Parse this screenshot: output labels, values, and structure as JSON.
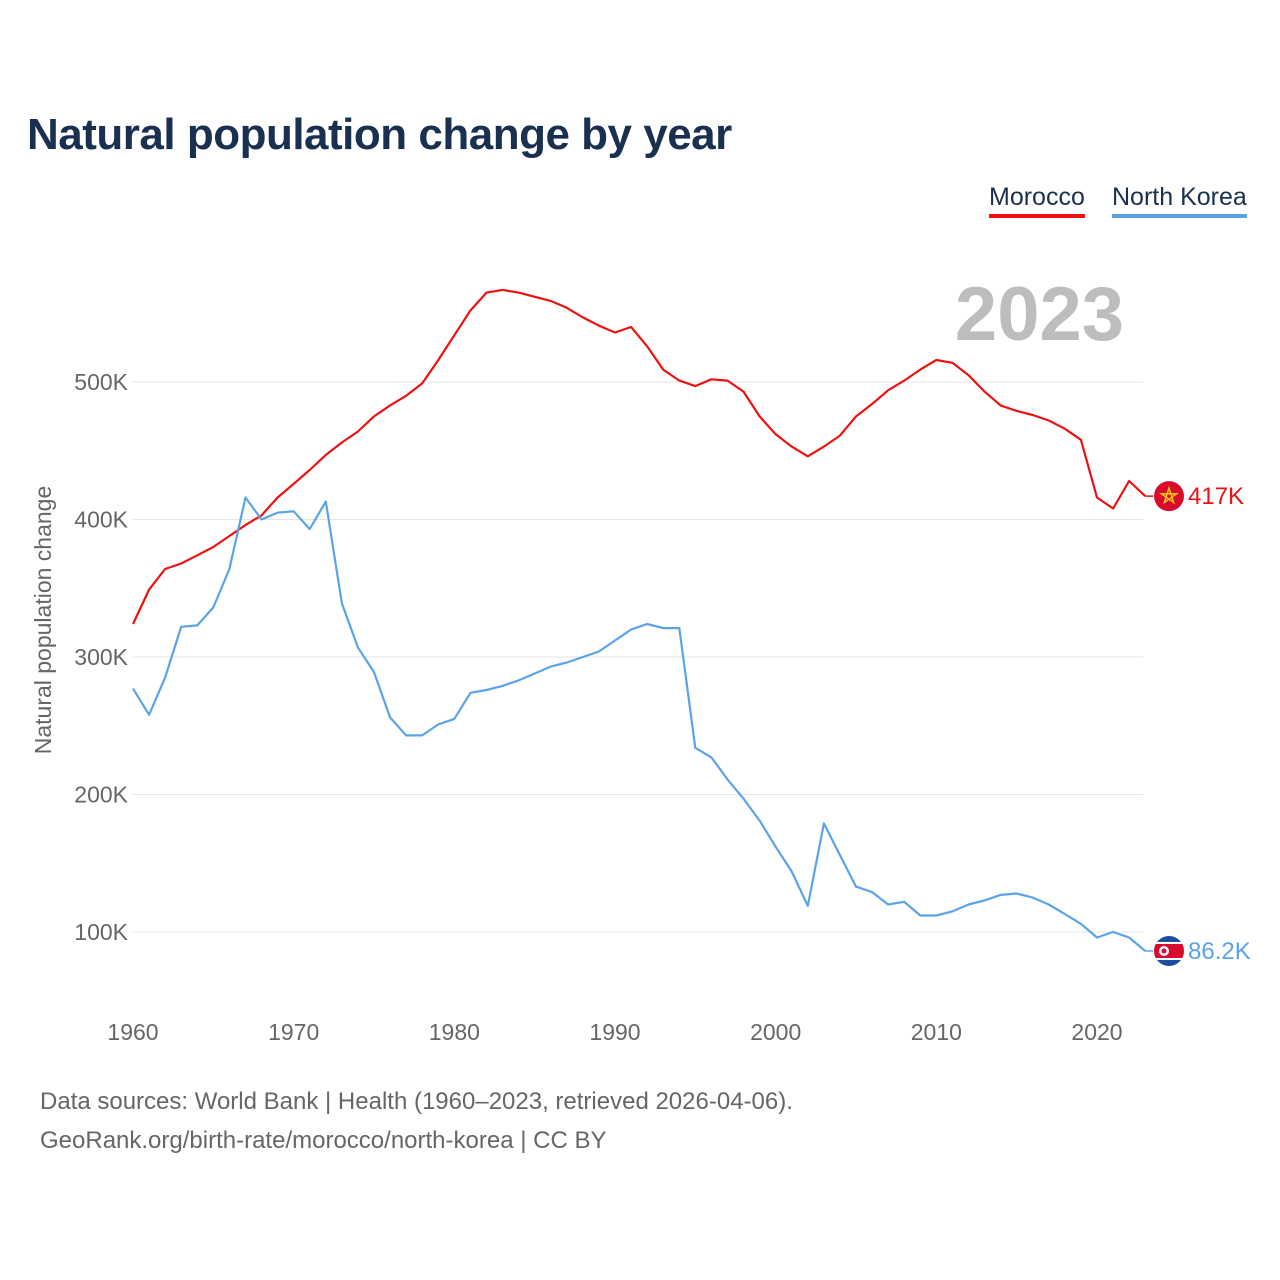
{
  "chart_data": {
    "type": "line",
    "title": "Natural population change by year",
    "ylabel": "Natural population change",
    "xlabel": "",
    "year_watermark": "2023",
    "xlim": [
      1960,
      2023
    ],
    "ylim": [
      50000,
      610000
    ],
    "x_ticks": [
      1960,
      1970,
      1980,
      1990,
      2000,
      2010,
      2020
    ],
    "x_tick_labels": [
      "1960",
      "1970",
      "1980",
      "1990",
      "2000",
      "2010",
      "2020"
    ],
    "y_ticks": [
      100000,
      200000,
      300000,
      400000,
      500000
    ],
    "y_tick_labels": [
      "100K",
      "200K",
      "300K",
      "400K",
      "500K"
    ],
    "grid": true,
    "legend_position": "top-right",
    "x": [
      1960,
      1961,
      1962,
      1963,
      1964,
      1965,
      1966,
      1967,
      1968,
      1969,
      1970,
      1971,
      1972,
      1973,
      1974,
      1975,
      1976,
      1977,
      1978,
      1979,
      1980,
      1981,
      1982,
      1983,
      1984,
      1985,
      1986,
      1987,
      1988,
      1989,
      1990,
      1991,
      1992,
      1993,
      1994,
      1995,
      1996,
      1997,
      1998,
      1999,
      2000,
      2001,
      2002,
      2003,
      2004,
      2005,
      2006,
      2007,
      2008,
      2009,
      2010,
      2011,
      2012,
      2013,
      2014,
      2015,
      2016,
      2017,
      2018,
      2019,
      2020,
      2021,
      2022,
      2023
    ],
    "series": [
      {
        "name": "Morocco",
        "color": "#ee1111",
        "end_label": "417K",
        "flag": "morocco-flag",
        "values": [
          324000,
          349000,
          364000,
          368000,
          374000,
          380000,
          388000,
          396000,
          403000,
          416000,
          426000,
          436000,
          447000,
          456000,
          464000,
          475000,
          483000,
          490000,
          499000,
          516000,
          534000,
          552000,
          565000,
          567000,
          565000,
          562000,
          559000,
          554000,
          547000,
          541000,
          536000,
          540000,
          526000,
          509000,
          501000,
          497000,
          502000,
          501000,
          493000,
          475000,
          462000,
          453000,
          446000,
          453000,
          461000,
          475000,
          484000,
          494000,
          501000,
          509000,
          516000,
          514000,
          505000,
          493000,
          483000,
          479000,
          476000,
          472000,
          466000,
          458000,
          416000,
          408000,
          428000,
          417000
        ]
      },
      {
        "name": "North Korea",
        "color": "#5ba3e8",
        "end_label": "86.2K",
        "flag": "north-korea-flag",
        "values": [
          277000,
          258000,
          285000,
          322000,
          323000,
          336000,
          364000,
          416000,
          400000,
          405000,
          406000,
          393000,
          413000,
          339000,
          307000,
          289000,
          256000,
          243000,
          243000,
          251000,
          255000,
          274000,
          276000,
          279000,
          283000,
          288000,
          293000,
          296000,
          300000,
          304000,
          312000,
          320000,
          324000,
          321000,
          321000,
          234000,
          227000,
          211000,
          197000,
          181000,
          162000,
          144000,
          119000,
          179000,
          156000,
          133000,
          129000,
          120000,
          122000,
          112000,
          112000,
          115000,
          120000,
          123000,
          127000,
          128000,
          125000,
          120000,
          113000,
          106000,
          96000,
          100000,
          96000,
          86200
        ]
      }
    ]
  },
  "footer": {
    "sources": "Data sources: World Bank | Health (1960–2023, retrieved 2026-04-06).",
    "credit": "GeoRank.org/birth-rate/morocco/north-korea | CC BY"
  }
}
